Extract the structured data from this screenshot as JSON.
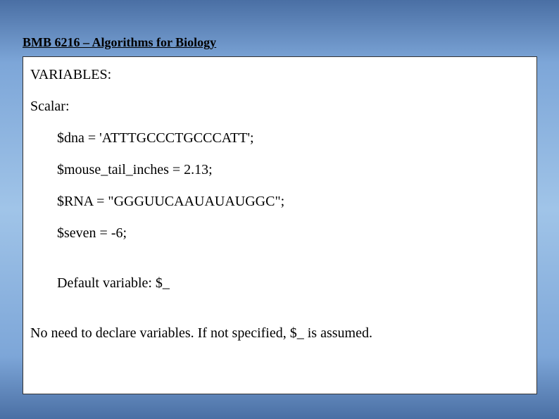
{
  "header": {
    "title": "BMB 6216 – Algorithms for Biology"
  },
  "content": {
    "section_title": "VARIABLES:",
    "subtitle": "Scalar:",
    "code_lines": [
      "$dna = 'ATTTGCCCTGCCCATT';",
      "$mouse_tail_inches = 2.13;",
      "$RNA = \"GGGUUCAAUAUAUGGC\";",
      "$seven = -6;"
    ],
    "default_line": "Default variable:  $_",
    "footer_line": "No need to declare variables. If not specified, $_ is assumed."
  },
  "styling": {
    "background_gradient_start": "#4a6fa4",
    "background_gradient_mid": "#a0c4e8",
    "content_background": "#ffffff",
    "content_border": "#333333",
    "text_color": "#000000",
    "header_fontsize": 18,
    "body_fontsize": 20,
    "font_family": "Times New Roman"
  }
}
